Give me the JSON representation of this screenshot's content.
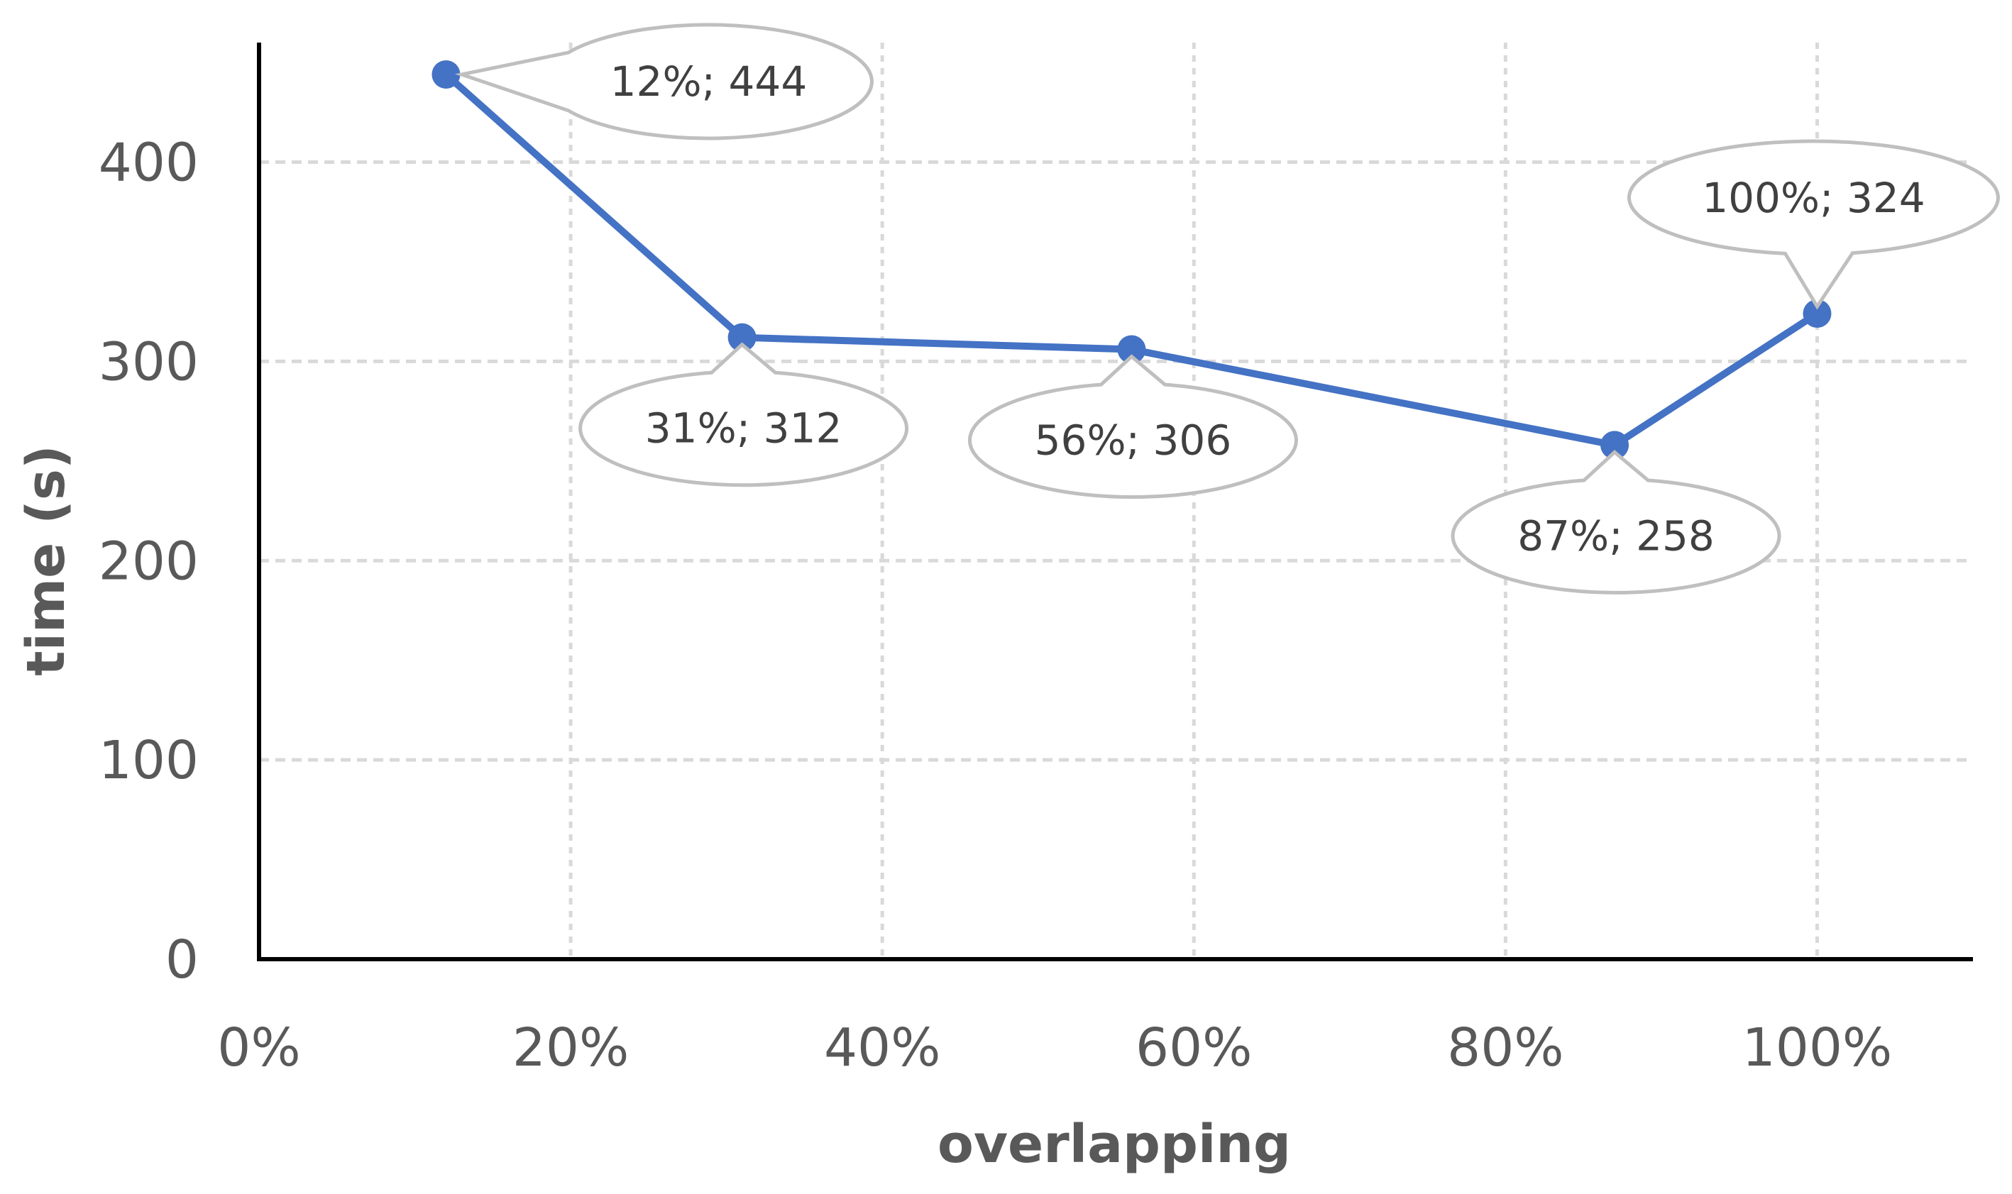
{
  "chart_data": {
    "type": "line",
    "xlabel": "overlapping",
    "ylabel": "time (s)",
    "xlim": [
      0,
      1.1
    ],
    "ylim": [
      0,
      460
    ],
    "x_ticks": [
      0,
      0.2,
      0.4,
      0.6,
      0.8,
      1.0
    ],
    "x_tick_labels": [
      "0%",
      "20%",
      "40%",
      "60%",
      "80%",
      "100%"
    ],
    "y_ticks": [
      0,
      100,
      200,
      300,
      400
    ],
    "y_tick_labels": [
      "0",
      "100",
      "200",
      "300",
      "400"
    ],
    "grid": true,
    "series": [
      {
        "x": [
          0.12,
          0.31,
          0.56,
          0.87,
          1.0
        ],
        "values": [
          444,
          312,
          306,
          258,
          324
        ],
        "color": "#4472C4",
        "labels": [
          "12%; 444",
          "31%; 312",
          "56%; 306",
          "87%; 258",
          "100%; 324"
        ],
        "label_placement": [
          "right",
          "below",
          "below",
          "below",
          "above"
        ]
      }
    ]
  }
}
